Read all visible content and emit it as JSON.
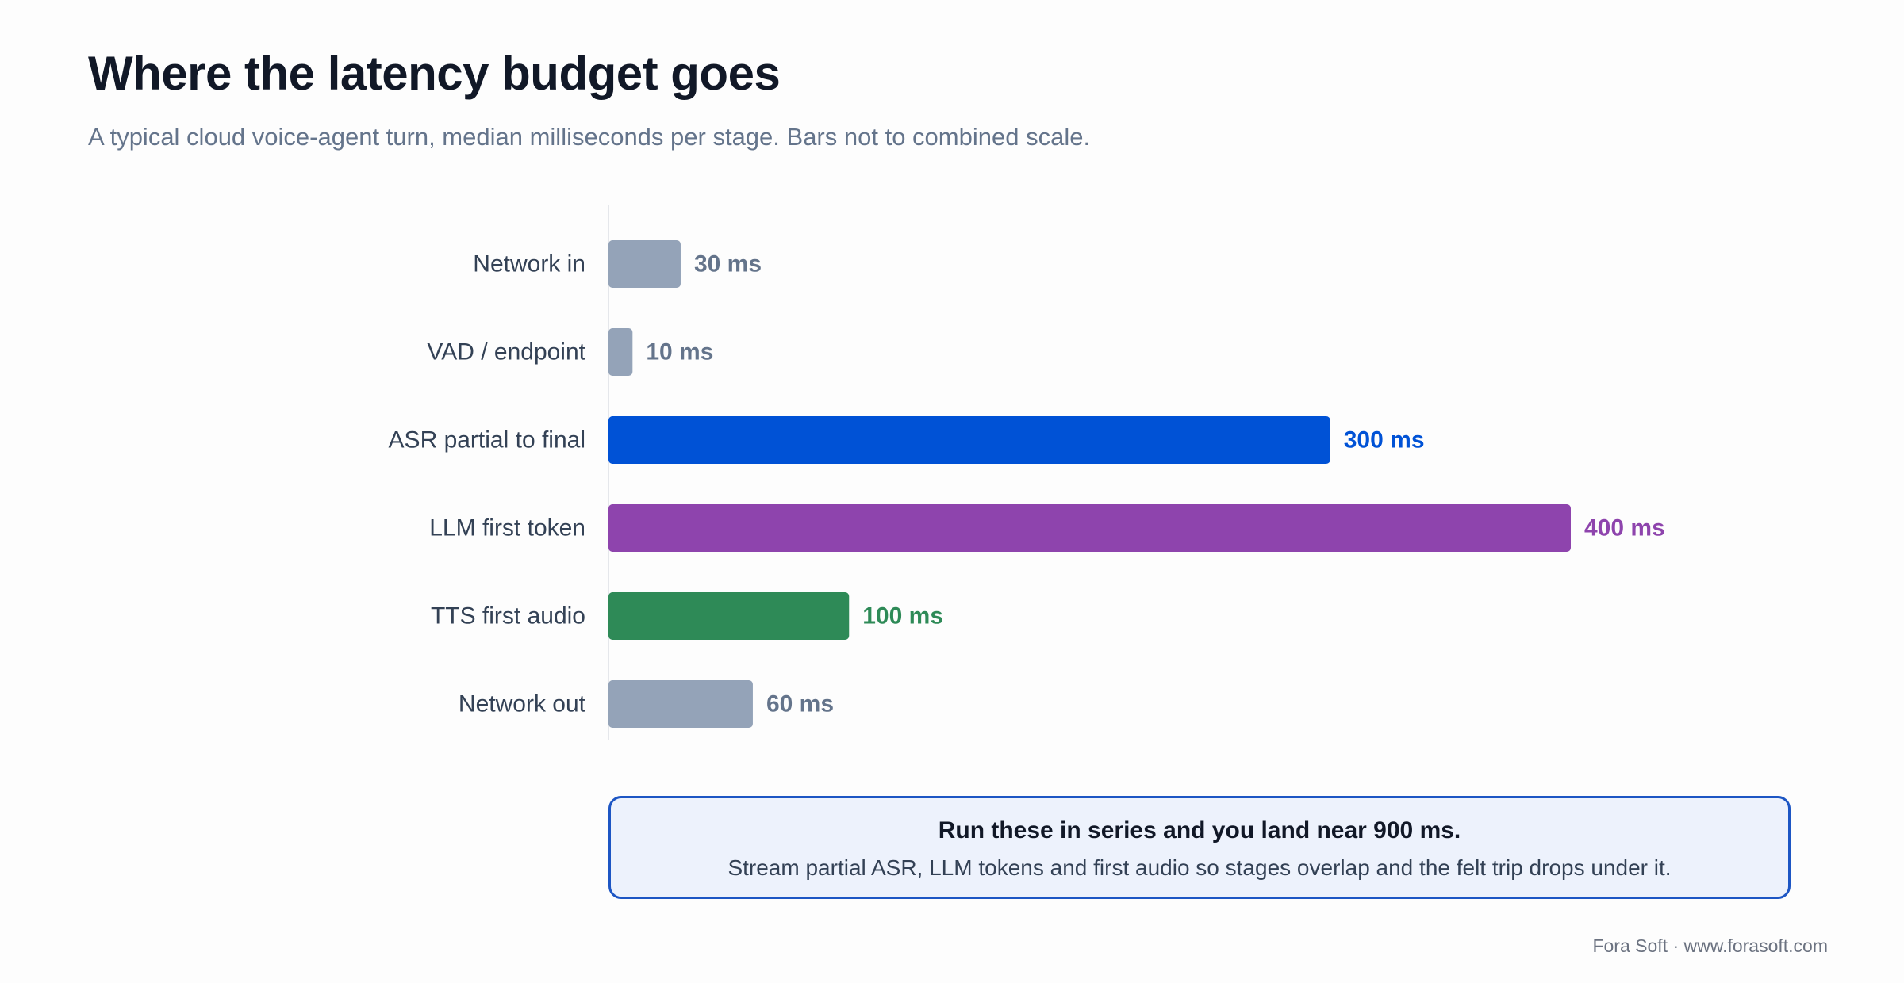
{
  "header": {
    "title": "Where the latency budget goes",
    "subtitle": "A typical cloud voice-agent turn, median milliseconds per stage. Bars not to combined scale."
  },
  "chart_data": {
    "type": "bar",
    "orientation": "horizontal",
    "categories": [
      "Network in",
      "VAD / endpoint",
      "ASR partial to final",
      "LLM first token",
      "TTS first audio",
      "Network out"
    ],
    "values": [
      30,
      10,
      300,
      400,
      100,
      60
    ],
    "value_labels": [
      "30 ms",
      "10 ms",
      "300 ms",
      "400 ms",
      "100 ms",
      "60 ms"
    ],
    "unit": "ms",
    "colors": [
      "#94a3b8",
      "#94a3b8",
      "#0052d6",
      "#8e44ad",
      "#2e8a57",
      "#94a3b8"
    ],
    "label_colors": [
      "#64748b",
      "#64748b",
      "#0052d6",
      "#8e44ad",
      "#2e8a57",
      "#64748b"
    ],
    "xlim": [
      0,
      400
    ],
    "grid": false,
    "legend": "none"
  },
  "callout": {
    "title": "Run these in series and you land near 900 ms.",
    "text": "Stream partial ASR, LLM tokens and first audio so stages overlap and the felt trip drops under it."
  },
  "footer": {
    "credit": "Fora Soft · www.forasoft.com"
  }
}
